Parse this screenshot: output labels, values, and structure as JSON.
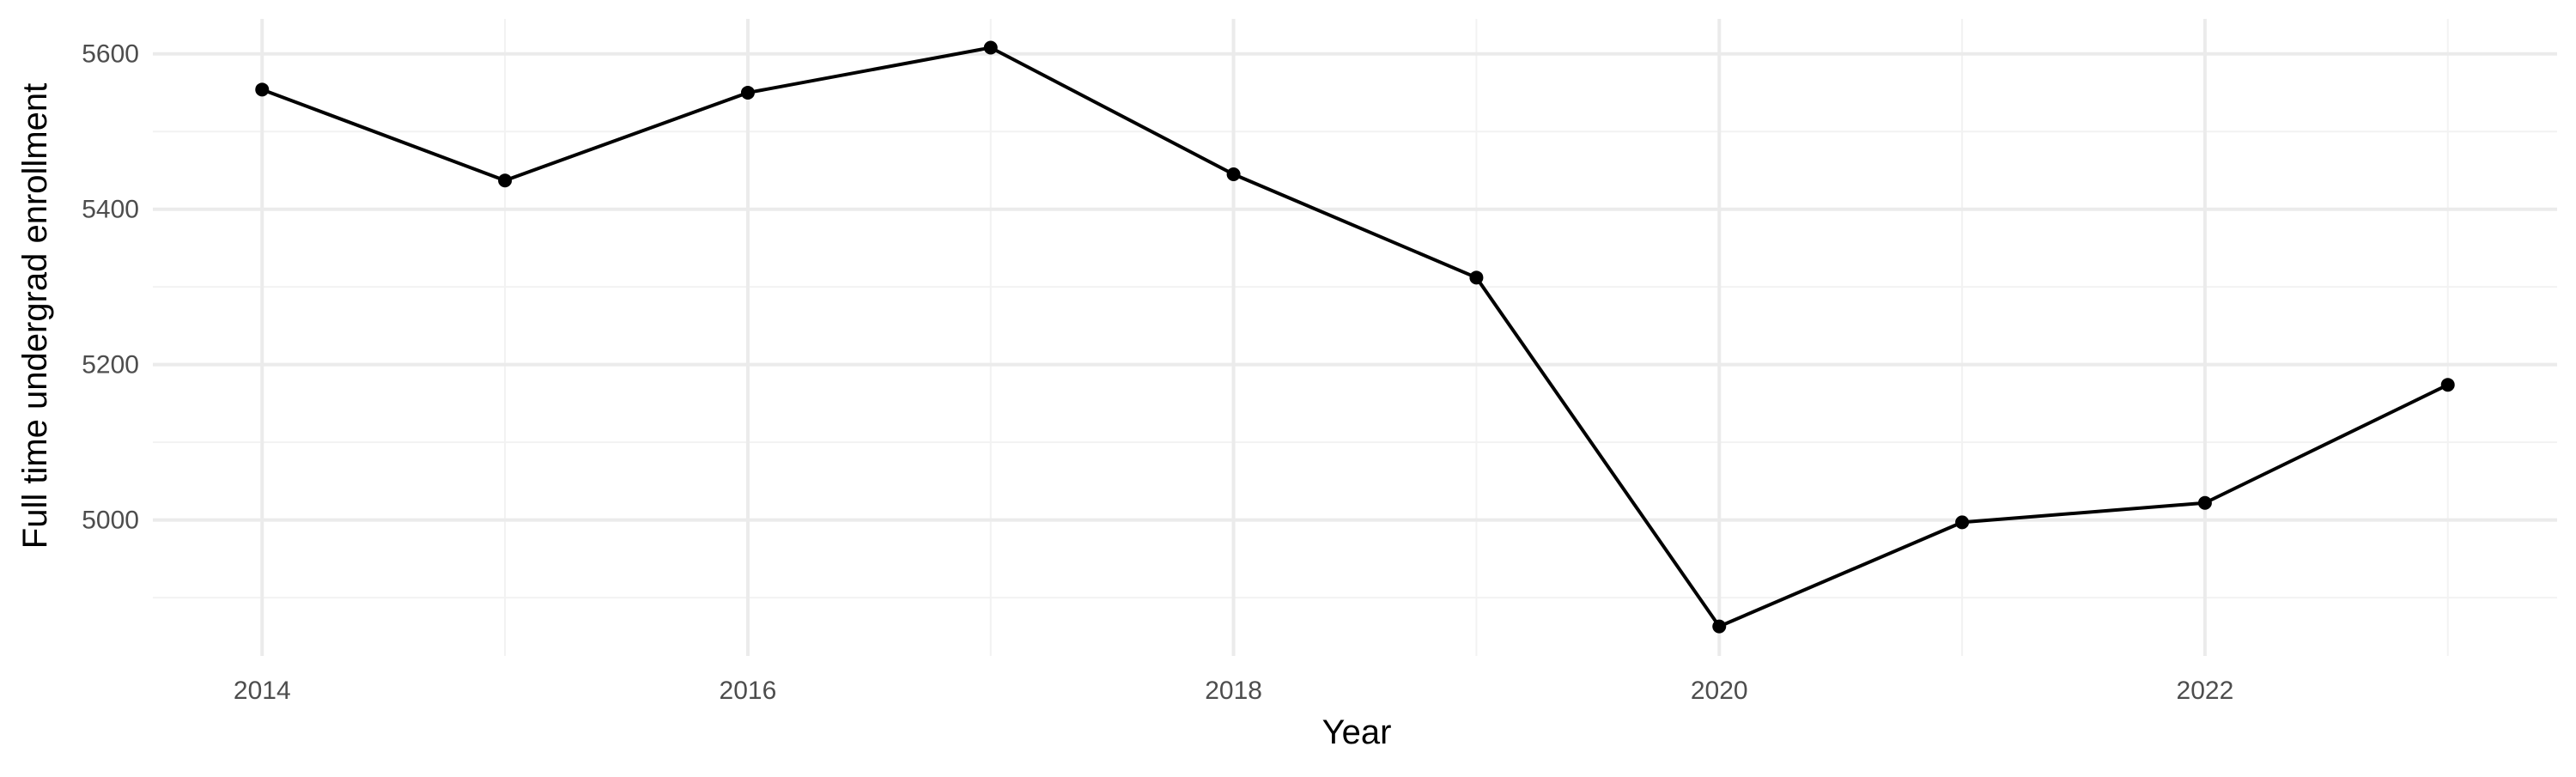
{
  "chart_data": {
    "type": "line",
    "title": "",
    "xlabel": "Year",
    "ylabel": "Full time undergrad enrollment",
    "x": [
      2014,
      2015,
      2016,
      2017,
      2018,
      2019,
      2020,
      2021,
      2022,
      2023
    ],
    "series": [
      {
        "values": [
          5554,
          5437,
          5550,
          5608,
          5445,
          5312,
          4863,
          4997,
          5022,
          5174
        ]
      }
    ],
    "xlim": [
      2013.55,
      2023.45
    ],
    "ylim": [
      4825,
      5645
    ],
    "x_ticks": [
      2014,
      2016,
      2018,
      2020,
      2022
    ],
    "x_tick_labels": [
      "2014",
      "2016",
      "2018",
      "2020",
      "2022"
    ],
    "x_minor_ticks": [
      2015,
      2017,
      2019,
      2021,
      2023
    ],
    "y_ticks": [
      5000,
      5200,
      5400,
      5600
    ],
    "y_tick_labels": [
      "5000",
      "5200",
      "5400",
      "5600"
    ],
    "y_minor_ticks": [
      4900,
      5100,
      5300,
      5500
    ],
    "grid": true,
    "legend": "none",
    "colors": {
      "line": "#000000",
      "point": "#000000",
      "grid_major": "#ebebeb",
      "grid_minor": "#f2f2f2",
      "background": "#ffffff"
    }
  }
}
